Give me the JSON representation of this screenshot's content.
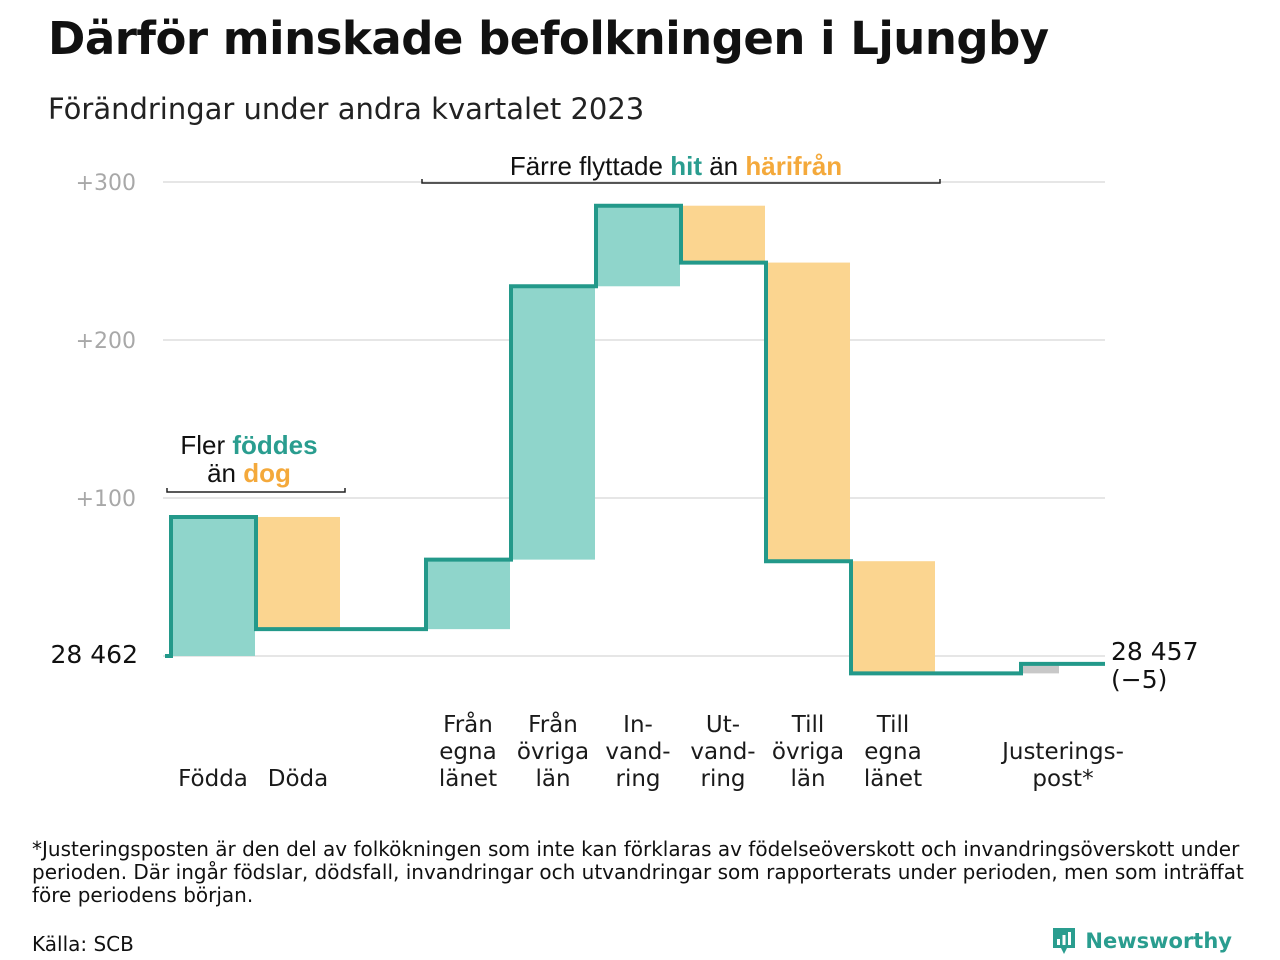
{
  "title": "Därför minskade befolkningen i Ljungby",
  "subtitle": "Förändringar under andra kvartalet 2023",
  "chart_data": {
    "type": "waterfall",
    "start_value": 28462,
    "start_label": "28  462",
    "end_value": 28457,
    "end_label": "28 457",
    "end_change_label": "(−5)",
    "y_ticks": [
      {
        "value": 100,
        "label": "+100"
      },
      {
        "value": 200,
        "label": "+200"
      },
      {
        "value": 300,
        "label": "+300"
      }
    ],
    "ylim": [
      -15,
      310
    ],
    "grid": true,
    "steps": [
      {
        "label": [
          "Födda"
        ],
        "change": 88,
        "kind": "in"
      },
      {
        "label": [
          "Döda"
        ],
        "change": -71,
        "kind": "out"
      },
      {
        "label": [
          "Från",
          "egna",
          "länet"
        ],
        "change": 44,
        "kind": "in"
      },
      {
        "label": [
          "Från",
          "övriga",
          "län"
        ],
        "change": 173,
        "kind": "in"
      },
      {
        "label": [
          "In-",
          "vand-",
          "ring"
        ],
        "change": 51,
        "kind": "in"
      },
      {
        "label": [
          "Ut-",
          "vand-",
          "ring"
        ],
        "change": -36,
        "kind": "out"
      },
      {
        "label": [
          "Till",
          "övriga",
          "län"
        ],
        "change": -189,
        "kind": "out"
      },
      {
        "label": [
          "Till",
          "egna",
          "länet"
        ],
        "change": -71,
        "kind": "out"
      },
      {
        "label": [
          "Justerings-",
          "post*"
        ],
        "change": 6,
        "kind": "adjust"
      }
    ],
    "annotations": [
      {
        "lines": [
          [
            {
              "text": "Fler "
            },
            {
              "text": "föddes",
              "color": "#2a9d8f"
            }
          ],
          [
            {
              "text": "än "
            },
            {
              "text": "dog",
              "color": "#f4a93b"
            }
          ]
        ]
      },
      {
        "lines": [
          [
            {
              "text": "Färre flyttade "
            },
            {
              "text": "hit",
              "color": "#2a9d8f"
            },
            {
              "text": "  än "
            },
            {
              "text": "härifrån",
              "color": "#f4a93b"
            }
          ]
        ]
      }
    ],
    "colors": {
      "in": "#8fd5cb",
      "out": "#fbd590",
      "adjust": "#c8c8c8",
      "line": "#23998a",
      "grid": "#e6e6e6"
    }
  },
  "footnote": "*Justeringsposten är den del av folkökningen som inte kan förklaras av födelseöverskott och invandringsöverskott under perioden. Där ingår födslar, dödsfall, invandringar och utvandringar som rapporterats under perioden, men som inträffat före periodens början.",
  "source": "Källa: SCB",
  "brand": "Newsworthy",
  "brand_icon": "newsworthy-logo-icon"
}
